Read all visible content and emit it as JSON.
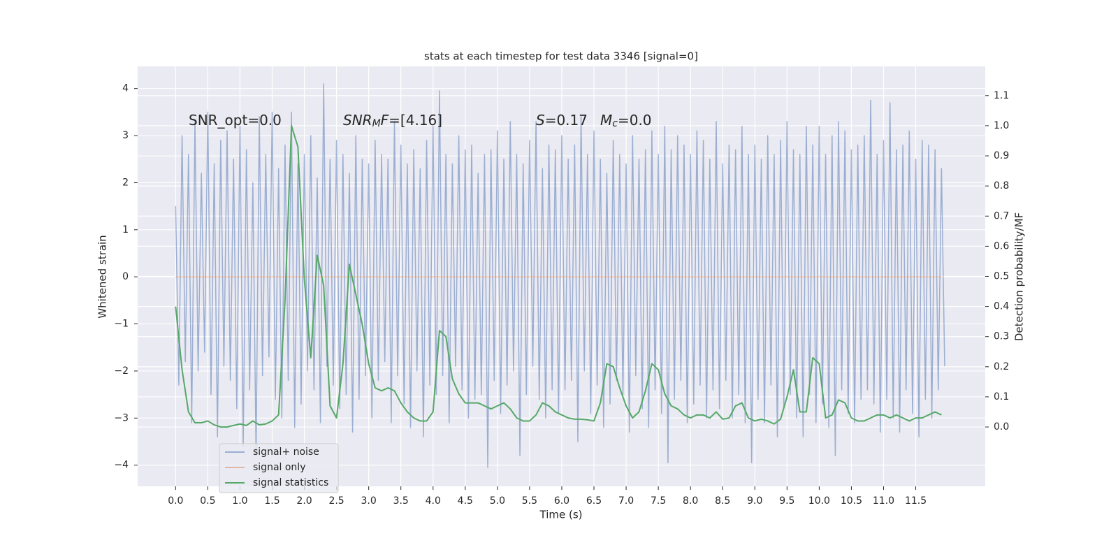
{
  "chart_data": {
    "type": "line",
    "title": "stats at each timestep for test data 3346 [signal=0]",
    "xlabel": "Time (s)",
    "ylabel": "Whitened strain",
    "y2label": "Detection probability/MF",
    "grid": true,
    "legend": "lower left",
    "background": "#eaeaf2",
    "xlim": [
      -0.59,
      12.58
    ],
    "ylim": [
      -4.45,
      4.47
    ],
    "y2lim": [
      -0.197,
      1.197
    ],
    "xticks": [
      {
        "value": 0,
        "label": "0.0"
      },
      {
        "value": 0.5,
        "label": "0.5"
      },
      {
        "value": 1,
        "label": "1.0"
      },
      {
        "value": 1.5,
        "label": "1.5"
      },
      {
        "value": 2,
        "label": "2.0"
      },
      {
        "value": 2.5,
        "label": "2.5"
      },
      {
        "value": 3,
        "label": "3.0"
      },
      {
        "value": 3.5,
        "label": "3.5"
      },
      {
        "value": 4,
        "label": "4.0"
      },
      {
        "value": 4.5,
        "label": "4.5"
      },
      {
        "value": 5,
        "label": "5.0"
      },
      {
        "value": 5.5,
        "label": "5.5"
      },
      {
        "value": 6,
        "label": "6.0"
      },
      {
        "value": 6.5,
        "label": "6.5"
      },
      {
        "value": 7,
        "label": "7.0"
      },
      {
        "value": 7.5,
        "label": "7.5"
      },
      {
        "value": 8,
        "label": "8.0"
      },
      {
        "value": 8.5,
        "label": "8.5"
      },
      {
        "value": 9,
        "label": "9.0"
      },
      {
        "value": 9.5,
        "label": "9.5"
      },
      {
        "value": 10,
        "label": "10.0"
      },
      {
        "value": 10.5,
        "label": "10.5"
      },
      {
        "value": 11,
        "label": "11.0"
      },
      {
        "value": 11.5,
        "label": "11.5"
      }
    ],
    "yticks": [
      {
        "value": -4,
        "label": "−4"
      },
      {
        "value": -3,
        "label": "−3"
      },
      {
        "value": -2,
        "label": "−2"
      },
      {
        "value": -1,
        "label": "−1"
      },
      0,
      1,
      2,
      3,
      4
    ],
    "y2ticks": [
      {
        "value": 0,
        "label": "0.0"
      },
      {
        "value": 0.1,
        "label": "0.1"
      },
      {
        "value": 0.2,
        "label": "0.2"
      },
      {
        "value": 0.3,
        "label": "0.3"
      },
      {
        "value": 0.4,
        "label": "0.4"
      },
      {
        "value": 0.5,
        "label": "0.5"
      },
      {
        "value": 0.6,
        "label": "0.6"
      },
      {
        "value": 0.7,
        "label": "0.7"
      },
      {
        "value": 0.8,
        "label": "0.8"
      },
      {
        "value": 0.9,
        "label": "0.9"
      },
      {
        "value": 1.0,
        "label": "1.0"
      },
      {
        "value": 1.1,
        "label": "1.1"
      }
    ],
    "annotations": [
      [
        {
          "text": "SNR_opt=0.0",
          "style": "normal"
        }
      ],
      [
        {
          "text": "SNR",
          "style": "italic"
        },
        {
          "text": "M",
          "style": "italic-sub"
        },
        {
          "text": "F",
          "style": "italic"
        },
        {
          "text": "=[4.16]",
          "style": "normal"
        }
      ],
      [
        {
          "text": "S",
          "style": "italic"
        },
        {
          "text": "=0.17",
          "style": "normal"
        }
      ],
      [
        {
          "text": "M",
          "style": "italic"
        },
        {
          "text": "c",
          "style": "italic-sub"
        },
        {
          "text": "=0.0",
          "style": "normal"
        }
      ]
    ],
    "x": [
      0,
      0.1,
      0.2,
      0.3,
      0.4,
      0.5,
      0.6,
      0.7,
      0.8,
      0.9,
      1.0,
      1.1,
      1.2,
      1.3,
      1.4,
      1.5,
      1.6,
      1.7,
      1.8,
      1.9,
      2.0,
      2.1,
      2.2,
      2.3,
      2.4,
      2.5,
      2.6,
      2.7,
      2.8,
      2.9,
      3.0,
      3.1,
      3.2,
      3.3,
      3.4,
      3.5,
      3.6,
      3.7,
      3.8,
      3.9,
      4.0,
      4.1,
      4.2,
      4.3,
      4.4,
      4.5,
      4.6,
      4.7,
      4.8,
      4.9,
      5.0,
      5.1,
      5.2,
      5.3,
      5.4,
      5.5,
      5.6,
      5.7,
      5.8,
      5.9,
      6.0,
      6.1,
      6.2,
      6.3,
      6.4,
      6.5,
      6.6,
      6.7,
      6.8,
      6.9,
      7.0,
      7.1,
      7.2,
      7.3,
      7.4,
      7.5,
      7.6,
      7.7,
      7.8,
      7.9,
      8.0,
      8.1,
      8.2,
      8.3,
      8.4,
      8.5,
      8.6,
      8.7,
      8.8,
      8.9,
      9.0,
      9.1,
      9.2,
      9.3,
      9.4,
      9.5,
      9.6,
      9.7,
      9.8,
      9.9,
      10.0,
      10.1,
      10.2,
      10.3,
      10.4,
      10.5,
      10.6,
      10.7,
      10.8,
      10.9,
      11.0,
      11.1,
      11.2,
      11.3,
      11.4,
      11.5,
      11.6,
      11.7,
      11.8,
      11.9
    ],
    "series": [
      {
        "name": "signal+ noise",
        "color": "#4c72b0",
        "opacity": 0.5,
        "x": [
          0,
          0.05,
          0.1,
          0.15,
          0.2,
          0.25,
          0.3,
          0.35,
          0.4,
          0.45,
          0.5,
          0.55,
          0.6,
          0.65,
          0.7,
          0.75,
          0.8,
          0.85,
          0.9,
          0.95,
          1.0,
          1.05,
          1.1,
          1.15,
          1.2,
          1.25,
          1.3,
          1.35,
          1.4,
          1.45,
          1.5,
          1.55,
          1.6,
          1.65,
          1.7,
          1.75,
          1.8,
          1.85,
          1.9,
          1.95,
          2.0,
          2.05,
          2.1,
          2.15,
          2.2,
          2.25,
          2.3,
          2.35,
          2.4,
          2.45,
          2.5,
          2.55,
          2.6,
          2.65,
          2.7,
          2.75,
          2.8,
          2.85,
          2.9,
          2.95,
          3.0,
          3.05,
          3.1,
          3.15,
          3.2,
          3.25,
          3.3,
          3.35,
          3.4,
          3.45,
          3.5,
          3.55,
          3.6,
          3.65,
          3.7,
          3.75,
          3.8,
          3.85,
          3.9,
          3.95,
          4.0,
          4.05,
          4.1,
          4.15,
          4.2,
          4.25,
          4.3,
          4.35,
          4.4,
          4.45,
          4.5,
          4.55,
          4.6,
          4.65,
          4.7,
          4.75,
          4.8,
          4.85,
          4.9,
          4.95,
          5.0,
          5.05,
          5.1,
          5.15,
          5.2,
          5.25,
          5.3,
          5.35,
          5.4,
          5.45,
          5.5,
          5.55,
          5.6,
          5.65,
          5.7,
          5.75,
          5.8,
          5.85,
          5.9,
          5.95,
          6.0,
          6.05,
          6.1,
          6.15,
          6.2,
          6.25,
          6.3,
          6.35,
          6.4,
          6.45,
          6.5,
          6.55,
          6.6,
          6.65,
          6.7,
          6.75,
          6.8,
          6.85,
          6.9,
          6.95,
          7.0,
          7.05,
          7.1,
          7.15,
          7.2,
          7.25,
          7.3,
          7.35,
          7.4,
          7.45,
          7.5,
          7.55,
          7.6,
          7.65,
          7.7,
          7.75,
          7.8,
          7.85,
          7.9,
          7.95,
          8.0,
          8.05,
          8.1,
          8.15,
          8.2,
          8.25,
          8.3,
          8.35,
          8.4,
          8.45,
          8.5,
          8.55,
          8.6,
          8.65,
          8.7,
          8.75,
          8.8,
          8.85,
          8.9,
          8.95,
          9.0,
          9.05,
          9.1,
          9.15,
          9.2,
          9.25,
          9.3,
          9.35,
          9.4,
          9.45,
          9.5,
          9.55,
          9.6,
          9.65,
          9.7,
          9.75,
          9.8,
          9.85,
          9.9,
          9.95,
          10.0,
          10.05,
          10.1,
          10.15,
          10.2,
          10.25,
          10.3,
          10.35,
          10.4,
          10.45,
          10.5,
          10.55,
          10.6,
          10.65,
          10.7,
          10.75,
          10.8,
          10.85,
          10.9,
          10.95,
          11.0,
          11.05,
          11.1,
          11.15,
          11.2,
          11.25,
          11.3,
          11.35,
          11.4,
          11.45,
          11.5,
          11.55,
          11.6,
          11.65,
          11.7,
          11.75,
          11.8,
          11.85,
          11.9,
          11.95
        ],
        "values": [
          1.5,
          -2.3,
          3.0,
          -1.8,
          2.6,
          -3.1,
          3.3,
          -2.0,
          2.2,
          -1.6,
          3.5,
          -2.5,
          2.4,
          -3.4,
          2.9,
          -1.9,
          3.1,
          -2.2,
          2.5,
          -2.8,
          3.2,
          -3.6,
          2.7,
          -2.4,
          2.0,
          -3.8,
          3.4,
          -2.1,
          2.6,
          -1.7,
          3.5,
          -2.6,
          2.3,
          -3.0,
          2.8,
          -2.2,
          3.5,
          -3.2,
          2.4,
          -2.7,
          2.6,
          -2.0,
          3.0,
          -2.4,
          2.1,
          -3.1,
          4.1,
          -1.9,
          2.5,
          -2.3,
          2.9,
          -2.8,
          2.6,
          -2.5,
          2.2,
          -3.3,
          3.0,
          -2.6,
          2.5,
          -2.1,
          2.4,
          -3.0,
          2.9,
          -2.2,
          2.6,
          -1.8,
          2.5,
          -3.1,
          3.3,
          -2.1,
          2.8,
          -2.7,
          2.4,
          -3.2,
          2.7,
          -2.0,
          2.3,
          -3.4,
          2.9,
          -2.3,
          3.2,
          -2.5,
          3.95,
          -2.1,
          2.6,
          -3.1,
          2.4,
          -1.9,
          3.0,
          -2.4,
          2.7,
          -3.0,
          2.8,
          -2.6,
          2.2,
          -2.5,
          2.6,
          -4.05,
          2.7,
          -2.2,
          3.1,
          -2.9,
          2.5,
          -2.3,
          3.3,
          -2.0,
          2.6,
          -3.8,
          2.4,
          -2.5,
          2.9,
          -1.9,
          3.3,
          -2.6,
          2.3,
          -3.0,
          2.8,
          -2.4,
          2.7,
          -2.9,
          3.0,
          -2.4,
          2.5,
          -2.2,
          2.8,
          -3.5,
          3.4,
          -2.0,
          2.6,
          -2.9,
          3.1,
          -2.3,
          2.5,
          -3.2,
          2.2,
          -2.7,
          2.9,
          -2.2,
          2.6,
          -2.5,
          2.4,
          -3.3,
          3.0,
          -2.1,
          2.5,
          -2.8,
          2.7,
          -3.2,
          3.1,
          -2.4,
          2.6,
          -2.9,
          3.2,
          -3.95,
          2.7,
          -2.6,
          3.0,
          -2.2,
          2.8,
          -3.1,
          2.6,
          -2.7,
          3.1,
          -2.3,
          2.9,
          -3.0,
          2.5,
          -2.4,
          3.3,
          -2.8,
          2.4,
          -2.2,
          2.8,
          -3.0,
          2.7,
          -2.5,
          3.2,
          -3.1,
          2.6,
          -3.95,
          2.8,
          -2.6,
          2.5,
          -3.1,
          3.0,
          -2.3,
          2.6,
          -3.4,
          2.9,
          -2.8,
          3.3,
          -2.5,
          2.7,
          -3.0,
          2.6,
          -3.4,
          3.2,
          -2.5,
          2.8,
          -3.1,
          3.2,
          -2.7,
          2.6,
          -3.2,
          3.0,
          -3.8,
          3.3,
          -2.4,
          3.1,
          -2.9,
          2.7,
          -3.1,
          2.8,
          -2.6,
          3.0,
          -2.4,
          3.75,
          -2.7,
          2.6,
          -3.3,
          2.9,
          -2.6,
          3.7,
          -3.0,
          2.7,
          -3.3,
          2.8,
          -2.4,
          3.1,
          -2.9,
          2.5,
          -3.4,
          2.9,
          -2.6,
          2.8,
          -3.0,
          2.7,
          -2.4,
          2.3,
          -1.9
        ]
      },
      {
        "name": "signal only",
        "color": "#dd8452",
        "opacity": 0.5,
        "values": [
          0,
          0,
          0,
          0,
          0,
          0,
          0,
          0,
          0,
          0,
          0,
          0,
          0,
          0,
          0,
          0,
          0,
          0,
          0,
          0,
          0,
          0,
          0,
          0,
          0,
          0,
          0,
          0,
          0,
          0,
          0,
          0,
          0,
          0,
          0,
          0,
          0,
          0,
          0,
          0,
          0,
          0,
          0,
          0,
          0,
          0,
          0,
          0,
          0,
          0,
          0,
          0,
          0,
          0,
          0,
          0,
          0,
          0,
          0,
          0,
          0,
          0,
          0,
          0,
          0,
          0,
          0,
          0,
          0,
          0,
          0,
          0,
          0,
          0,
          0,
          0,
          0,
          0,
          0,
          0,
          0,
          0,
          0,
          0,
          0,
          0,
          0,
          0,
          0,
          0,
          0,
          0,
          0,
          0,
          0,
          0,
          0,
          0,
          0,
          0,
          0,
          0,
          0,
          0,
          0,
          0,
          0,
          0,
          0,
          0,
          0,
          0,
          0,
          0,
          0,
          0,
          0,
          0,
          0,
          0
        ]
      },
      {
        "name": "signal statistics",
        "color": "#55a868",
        "opacity": 1,
        "axis": "y2",
        "values": [
          0.4,
          0.19,
          0.05,
          0.014,
          0.014,
          0.02,
          0.007,
          0.0,
          0.0,
          0.005,
          0.01,
          0.005,
          0.02,
          0.007,
          0.01,
          0.02,
          0.04,
          0.42,
          1.0,
          0.93,
          0.49,
          0.23,
          0.57,
          0.47,
          0.07,
          0.03,
          0.21,
          0.54,
          0.44,
          0.34,
          0.21,
          0.13,
          0.12,
          0.13,
          0.12,
          0.08,
          0.05,
          0.03,
          0.02,
          0.02,
          0.05,
          0.32,
          0.3,
          0.16,
          0.11,
          0.08,
          0.08,
          0.08,
          0.07,
          0.06,
          0.07,
          0.08,
          0.06,
          0.03,
          0.02,
          0.02,
          0.04,
          0.08,
          0.07,
          0.05,
          0.04,
          0.03,
          0.026,
          0.026,
          0.024,
          0.02,
          0.08,
          0.21,
          0.2,
          0.13,
          0.07,
          0.03,
          0.05,
          0.12,
          0.21,
          0.19,
          0.11,
          0.07,
          0.06,
          0.04,
          0.03,
          0.04,
          0.04,
          0.03,
          0.05,
          0.026,
          0.03,
          0.07,
          0.08,
          0.03,
          0.02,
          0.026,
          0.02,
          0.01,
          0.026,
          0.1,
          0.19,
          0.05,
          0.05,
          0.23,
          0.21,
          0.03,
          0.04,
          0.09,
          0.08,
          0.03,
          0.02,
          0.02,
          0.03,
          0.04,
          0.04,
          0.03,
          0.04,
          0.03,
          0.02,
          0.03,
          0.03,
          0.04,
          0.05,
          0.04
        ]
      }
    ]
  }
}
